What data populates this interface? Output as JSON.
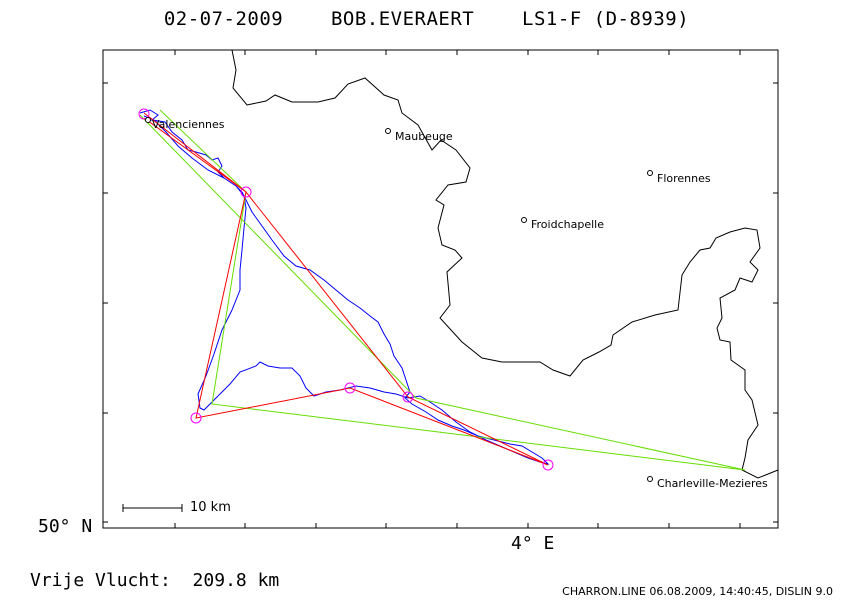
{
  "title": {
    "date": "02-07-2009",
    "pilot": "BOB.EVERAERT",
    "glider": "LS1-F (D-8939)"
  },
  "axes": {
    "lat_label": "50° N",
    "lon_label": "4° E"
  },
  "towns": [
    {
      "name": "Valenciennes"
    },
    {
      "name": "Maubeuge"
    },
    {
      "name": "Florennes"
    },
    {
      "name": "Froidchapelle"
    },
    {
      "name": "Charleville-Mezieres"
    }
  ],
  "scale": {
    "label": "10 km"
  },
  "footer": {
    "distance": "Vrije Vlucht:  209.8 km",
    "program": "CHARRON.LINE 06.08.2009, 14:40:45, DISLIN 9.0"
  },
  "colors": {
    "frame": "#000000",
    "border": "#000000",
    "track": "#0000ff",
    "task": "#ff0000",
    "free_flight": "#66dd00",
    "turnpoint": "#ff00ff"
  }
}
